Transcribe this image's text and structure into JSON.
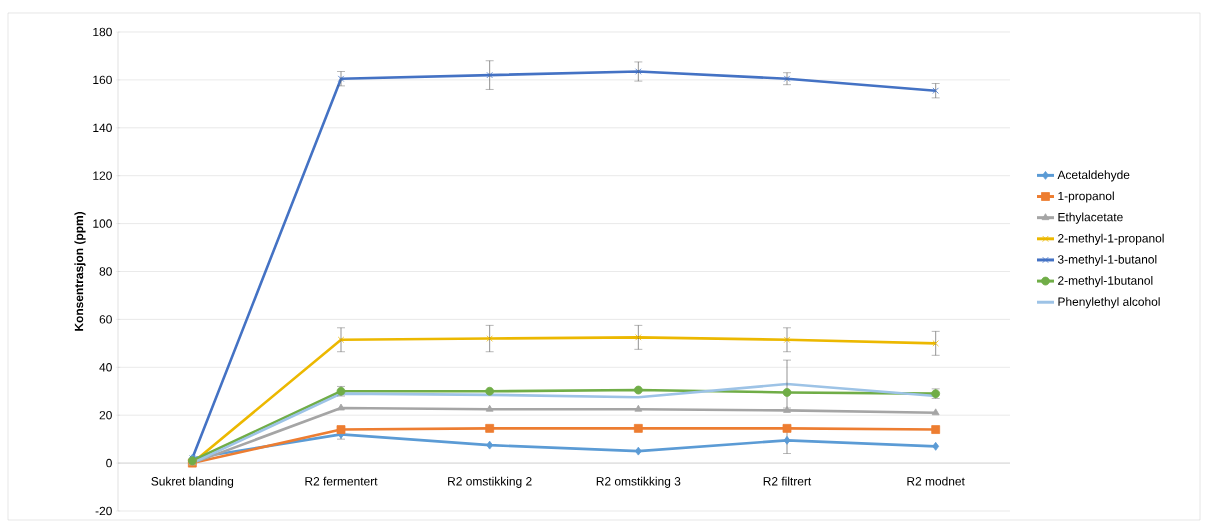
{
  "chart_data": {
    "type": "line",
    "ylabel": "Konsentrasjon (ppm)",
    "categories": [
      "Sukret blanding",
      "R2 fermentert",
      "R2 omstikking 2",
      "R2 omstikking 3",
      "R2 filtrert",
      "R2 modnet"
    ],
    "ylim": [
      -20,
      180
    ],
    "yticks": [
      -20,
      0,
      20,
      40,
      60,
      80,
      100,
      120,
      140,
      160,
      180
    ],
    "grid": "y",
    "legend": "right",
    "series": [
      {
        "name": "Acetaldehyde",
        "color": "#5b9bd5",
        "marker": "diamond",
        "values": [
          2,
          12,
          7.5,
          5,
          9.5,
          7
        ],
        "errors": [
          null,
          2,
          null,
          null,
          5.5,
          null
        ]
      },
      {
        "name": "1-propanol",
        "color": "#ed7d31",
        "marker": "square",
        "values": [
          0,
          14,
          14.5,
          14.5,
          14.5,
          14
        ]
      },
      {
        "name": "Ethylacetate",
        "color": "#a5a5a5",
        "marker": "triangle",
        "values": [
          0,
          23,
          22.5,
          22.5,
          22,
          21
        ]
      },
      {
        "name": "2-methyl-1-propanol",
        "color": "#ecb800",
        "marker": "cross",
        "values": [
          0,
          51.5,
          52,
          52.5,
          51.5,
          50
        ],
        "errors": [
          null,
          5,
          5.5,
          5,
          5,
          5
        ]
      },
      {
        "name": "3-methyl-1-butanol",
        "color": "#4472c4",
        "marker": "cross",
        "values": [
          2,
          160.5,
          162,
          163.5,
          160.5,
          155.5
        ],
        "errors": [
          null,
          3,
          6,
          4,
          2.5,
          3
        ]
      },
      {
        "name": "2-methyl-1butanol",
        "color": "#70ad47",
        "marker": "circle",
        "values": [
          1,
          30,
          30,
          30.5,
          29.5,
          29
        ],
        "errors": [
          null,
          2,
          null,
          null,
          null,
          2
        ]
      },
      {
        "name": "Phenylethyl alcohol",
        "color": "#9dc3e6",
        "marker": "none",
        "values": [
          0,
          29,
          28.5,
          27.5,
          33,
          28
        ],
        "errors": [
          null,
          null,
          null,
          null,
          10,
          null
        ]
      }
    ]
  }
}
